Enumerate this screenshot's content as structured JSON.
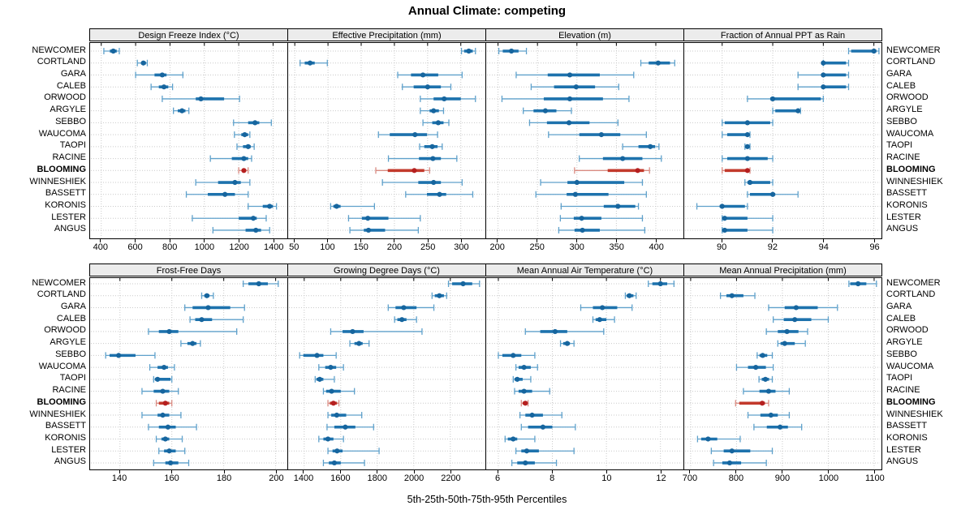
{
  "title": "Annual Climate: competing",
  "xlabel": "5th-25th-50th-75th-95th Percentiles",
  "colors": {
    "blue_thin": "#5fa1cb",
    "blue_thick": "#1d72ad",
    "blue_dot": "#16659e",
    "red_thin": "#d98b82",
    "red_thick": "#c23a2c",
    "red_dot": "#b51f1f",
    "strip_bg": "#ececec",
    "grid": "#c9c9c9",
    "border": "#000000"
  },
  "chart_data": {
    "type": "dotplot-percentiles",
    "percentile_labels": [
      "5th",
      "25th",
      "50th",
      "75th",
      "95th"
    ],
    "legend_position": "none",
    "grid": "dotted",
    "highlight_category": "BLOOMING",
    "categories": [
      "NEWCOMER",
      "CORTLAND",
      "GARA",
      "CALEB",
      "ORWOOD",
      "ARGYLE",
      "SEBBO",
      "WAUCOMA",
      "TAOPI",
      "RACINE",
      "BLOOMING",
      "WINNESHIEK",
      "BASSETT",
      "KORONIS",
      "LESTER",
      "ANGUS"
    ],
    "panels": [
      {
        "title": "Design Freeze Index (°C)",
        "ticks": [
          400,
          600,
          800,
          1000,
          1200,
          1400
        ],
        "xlim": [
          335,
          1483
        ],
        "values": [
          [
            415,
            450,
            470,
            490,
            505
          ],
          [
            610,
            632,
            645,
            660,
            668
          ],
          [
            600,
            710,
            755,
            780,
            875
          ],
          [
            690,
            735,
            765,
            790,
            815
          ],
          [
            755,
            950,
            980,
            1115,
            1205
          ],
          [
            820,
            845,
            870,
            890,
            910
          ],
          [
            1170,
            1255,
            1295,
            1320,
            1390
          ],
          [
            1175,
            1215,
            1235,
            1255,
            1265
          ],
          [
            1190,
            1225,
            1255,
            1270,
            1290
          ],
          [
            1035,
            1160,
            1230,
            1255,
            1275
          ],
          [
            1200,
            1218,
            1230,
            1243,
            1255
          ],
          [
            950,
            1080,
            1178,
            1212,
            1265
          ],
          [
            895,
            1020,
            1120,
            1178,
            1255
          ],
          [
            1255,
            1340,
            1380,
            1400,
            1420
          ],
          [
            930,
            1200,
            1285,
            1305,
            1360
          ],
          [
            1050,
            1240,
            1300,
            1330,
            1380
          ]
        ]
      },
      {
        "title": "Effective Precipitation (mm)",
        "ticks": [
          50,
          100,
          150,
          200,
          250,
          300
        ],
        "xlim": [
          40,
          337
        ],
        "values": [
          [
            301,
            305,
            312,
            318,
            322
          ],
          [
            58,
            65,
            73,
            80,
            99
          ],
          [
            205,
            225,
            243,
            266,
            302
          ],
          [
            212,
            229,
            250,
            270,
            285
          ],
          [
            239,
            259,
            275,
            300,
            322
          ],
          [
            239,
            253,
            259,
            267,
            274
          ],
          [
            243,
            257,
            266,
            274,
            282
          ],
          [
            176,
            193,
            231,
            249,
            265
          ],
          [
            238,
            245,
            257,
            265,
            272
          ],
          [
            191,
            237,
            258,
            270,
            294
          ],
          [
            172,
            190,
            230,
            245,
            253
          ],
          [
            182,
            236,
            259,
            270,
            302
          ],
          [
            217,
            249,
            268,
            278,
            318
          ],
          [
            104,
            108,
            113,
            119,
            170
          ],
          [
            131,
            151,
            160,
            191,
            239
          ],
          [
            133,
            154,
            161,
            186,
            236
          ]
        ]
      },
      {
        "title": "Elevation (m)",
        "ticks": [
          200,
          250,
          300,
          350,
          400
        ],
        "xlim": [
          185,
          435
        ],
        "values": [
          [
            201,
            206,
            217,
            226,
            236
          ],
          [
            381,
            391,
            403,
            418,
            424
          ],
          [
            223,
            263,
            291,
            329,
            372
          ],
          [
            242,
            271,
            299,
            323,
            353
          ],
          [
            205,
            258,
            291,
            333,
            366
          ],
          [
            232,
            245,
            260,
            274,
            293
          ],
          [
            240,
            262,
            290,
            316,
            352
          ],
          [
            264,
            303,
            331,
            355,
            388
          ],
          [
            358,
            378,
            393,
            399,
            404
          ],
          [
            303,
            333,
            358,
            383,
            407
          ],
          [
            297,
            339,
            377,
            385,
            392
          ],
          [
            254,
            288,
            300,
            360,
            383
          ],
          [
            248,
            287,
            298,
            340,
            388
          ],
          [
            280,
            334,
            352,
            374,
            378
          ],
          [
            279,
            296,
            306,
            331,
            383
          ],
          [
            277,
            297,
            307,
            329,
            386
          ]
        ]
      },
      {
        "title": "Fraction of Annual PPT as Rain",
        "ticks": [
          90,
          92,
          94,
          96
        ],
        "xlim": [
          88.5,
          96.3
        ],
        "values": [
          [
            95.0,
            95.1,
            96.0,
            96.1,
            96.2
          ],
          [
            94.0,
            94.0,
            94.0,
            94.9,
            95.0
          ],
          [
            93.0,
            94.0,
            94.0,
            94.9,
            95.0
          ],
          [
            93.0,
            94.0,
            94.0,
            94.9,
            95.0
          ],
          [
            91.0,
            91.9,
            92.0,
            93.9,
            94.0
          ],
          [
            92.0,
            92.1,
            93.0,
            93.0,
            93.1
          ],
          [
            90.0,
            90.1,
            91.0,
            91.9,
            92.0
          ],
          [
            90.0,
            90.2,
            91.0,
            91.0,
            91.1
          ],
          [
            90.9,
            91.0,
            91.0,
            91.0,
            91.1
          ],
          [
            90.0,
            90.2,
            91.0,
            91.8,
            92.0
          ],
          [
            90.0,
            90.1,
            91.0,
            91.0,
            91.1
          ],
          [
            90.9,
            91.0,
            91.1,
            91.9,
            92.0
          ],
          [
            91.0,
            91.1,
            92.0,
            92.1,
            93.0
          ],
          [
            89.0,
            89.9,
            90.0,
            90.9,
            91.0
          ],
          [
            90.0,
            90.0,
            90.1,
            91.0,
            92.0
          ],
          [
            90.0,
            90.0,
            90.1,
            91.0,
            92.0
          ]
        ]
      },
      {
        "title": "Frost-Free Days",
        "ticks": [
          140,
          160,
          180,
          200
        ],
        "xlim": [
          128.5,
          204.5
        ],
        "values": [
          [
            187.5,
            189.5,
            193.5,
            197,
            201
          ],
          [
            171.5,
            172.5,
            173.5,
            174.5,
            176
          ],
          [
            165,
            168,
            174,
            182.5,
            188
          ],
          [
            167,
            169,
            171.5,
            175.5,
            187.5
          ],
          [
            151,
            155,
            159,
            162.5,
            185
          ],
          [
            163.5,
            166,
            168,
            169.5,
            171
          ],
          [
            134.5,
            136,
            139.5,
            146,
            153.5
          ],
          [
            151.5,
            154.5,
            157,
            158.5,
            161
          ],
          [
            153,
            153.5,
            154.5,
            159.5,
            160
          ],
          [
            148.5,
            153,
            156.5,
            159,
            162.5
          ],
          [
            154,
            155,
            157.5,
            159,
            160
          ],
          [
            148.5,
            154.5,
            156.5,
            159,
            163.5
          ],
          [
            151,
            155,
            158.5,
            161.5,
            169.5
          ],
          [
            154,
            156,
            157.5,
            159,
            164
          ],
          [
            155,
            157,
            159,
            161.5,
            165
          ],
          [
            153,
            157.5,
            159.5,
            162.5,
            166.5
          ]
        ]
      },
      {
        "title": "Growing Degree Days (°C)",
        "ticks": [
          1400,
          1600,
          1800,
          2000,
          2200
        ],
        "xlim": [
          1312,
          2392
        ],
        "values": [
          [
            2190,
            2210,
            2270,
            2320,
            2360
          ],
          [
            2100,
            2115,
            2140,
            2165,
            2180
          ],
          [
            1860,
            1900,
            1945,
            2015,
            2110
          ],
          [
            1895,
            1910,
            1935,
            1960,
            2015
          ],
          [
            1545,
            1610,
            1665,
            1725,
            2045
          ],
          [
            1650,
            1675,
            1700,
            1720,
            1755
          ],
          [
            1375,
            1395,
            1470,
            1505,
            1575
          ],
          [
            1480,
            1515,
            1545,
            1575,
            1615
          ],
          [
            1460,
            1467,
            1485,
            1505,
            1565
          ],
          [
            1505,
            1520,
            1550,
            1600,
            1675
          ],
          [
            1530,
            1540,
            1560,
            1580,
            1590
          ],
          [
            1530,
            1548,
            1578,
            1630,
            1715
          ],
          [
            1525,
            1565,
            1625,
            1680,
            1780
          ],
          [
            1480,
            1505,
            1530,
            1560,
            1615
          ],
          [
            1530,
            1555,
            1580,
            1610,
            1810
          ],
          [
            1505,
            1535,
            1565,
            1600,
            1730
          ]
        ]
      },
      {
        "title": "Mean Annual Air Temperature (°C)",
        "ticks": [
          6,
          8,
          10,
          12
        ],
        "xlim": [
          5.55,
          12.85
        ],
        "values": [
          [
            11.55,
            11.7,
            12.0,
            12.25,
            12.5
          ],
          [
            10.7,
            10.75,
            10.85,
            11.0,
            11.1
          ],
          [
            9.05,
            9.5,
            9.85,
            10.4,
            10.95
          ],
          [
            9.5,
            9.6,
            9.75,
            10.0,
            10.3
          ],
          [
            7.0,
            7.55,
            8.1,
            8.55,
            9.9
          ],
          [
            8.3,
            8.4,
            8.55,
            8.65,
            8.8
          ],
          [
            6.0,
            6.15,
            6.55,
            6.85,
            7.35
          ],
          [
            6.65,
            6.75,
            6.95,
            7.2,
            7.45
          ],
          [
            6.55,
            6.6,
            6.7,
            6.9,
            7.2
          ],
          [
            6.6,
            6.75,
            6.95,
            7.25,
            7.9
          ],
          [
            6.85,
            6.9,
            7.0,
            7.05,
            7.1
          ],
          [
            6.8,
            7.0,
            7.25,
            7.65,
            8.35
          ],
          [
            6.85,
            7.1,
            7.65,
            8.0,
            8.85
          ],
          [
            6.25,
            6.35,
            6.55,
            6.7,
            7.35
          ],
          [
            6.65,
            6.85,
            7.05,
            7.5,
            8.8
          ],
          [
            6.5,
            6.7,
            7.0,
            7.35,
            8.15
          ]
        ]
      },
      {
        "title": "Mean Annual Precipitation (mm)",
        "ticks": [
          700,
          800,
          900,
          1000,
          1100
        ],
        "xlim": [
          686,
          1116
        ],
        "values": [
          [
            1045,
            1048,
            1065,
            1083,
            1105
          ],
          [
            765,
            778,
            790,
            815,
            840
          ],
          [
            870,
            905,
            930,
            977,
            1020
          ],
          [
            880,
            903,
            927,
            963,
            1000
          ],
          [
            865,
            890,
            910,
            935,
            955
          ],
          [
            890,
            896,
            905,
            927,
            950
          ],
          [
            845,
            850,
            857,
            867,
            878
          ],
          [
            800,
            825,
            842,
            864,
            880
          ],
          [
            849,
            855,
            863,
            871,
            878
          ],
          [
            815,
            850,
            870,
            885,
            915
          ],
          [
            798,
            806,
            856,
            862,
            870
          ],
          [
            825,
            852,
            875,
            890,
            915
          ],
          [
            838,
            866,
            895,
            912,
            942
          ],
          [
            715,
            723,
            738,
            758,
            808
          ],
          [
            745,
            772,
            790,
            830,
            878
          ],
          [
            750,
            769,
            785,
            810,
            865
          ]
        ]
      }
    ]
  }
}
